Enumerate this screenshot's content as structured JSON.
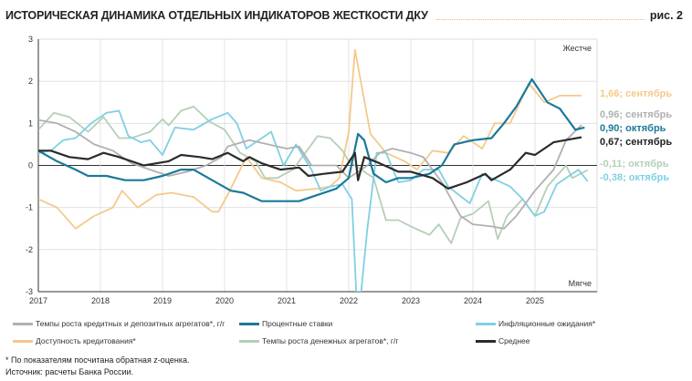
{
  "title": "ИСТОРИЧЕСКАЯ ДИНАМИКА ОТДЕЛЬНЫХ ИНДИКАТОРОВ ЖЕСТКОСТИ ДКУ",
  "figure_label": "рис. 2",
  "footnote": "*    По показателям посчитана обратная z-оценка.",
  "source": "Источник: расчеты Банка России.",
  "chart_data": {
    "type": "line",
    "xlim": [
      2017,
      2026
    ],
    "ylim": [
      -3,
      3
    ],
    "x_ticks": [
      "2017",
      "2018",
      "2019",
      "2020",
      "2021",
      "2022",
      "2023",
      "2024",
      "2025"
    ],
    "y_ticks": [
      "3",
      "2",
      "1",
      "0",
      "-1",
      "-2",
      "-3"
    ],
    "grid": true,
    "annotations": {
      "top": "Жестче",
      "bottom": "Мягче"
    },
    "legend_position": "bottom",
    "series": [
      {
        "name": "Темпы роста кредитных и депозитных агрегатов*, г/г",
        "color": "#b0b0b0",
        "end_label": "0,96; сентябрь",
        "points": [
          [
            2017,
            1.08
          ],
          [
            2017.3,
            1.0
          ],
          [
            2017.6,
            0.8
          ],
          [
            2017.9,
            0.5
          ],
          [
            2018.2,
            0.35
          ],
          [
            2018.5,
            0.05
          ],
          [
            2018.8,
            -0.1
          ],
          [
            2019.1,
            -0.25
          ],
          [
            2019.4,
            -0.15
          ],
          [
            2019.7,
            0.0
          ],
          [
            2019.95,
            0.2
          ],
          [
            2020.05,
            0.45
          ],
          [
            2020.4,
            0.6
          ],
          [
            2020.7,
            0.5
          ],
          [
            2021.0,
            0.4
          ],
          [
            2021.2,
            0.45
          ],
          [
            2021.4,
            0.0
          ],
          [
            2021.8,
            0.0
          ],
          [
            2022.0,
            -0.3
          ],
          [
            2022.3,
            0.0
          ],
          [
            2022.5,
            0.3
          ],
          [
            2022.7,
            0.4
          ],
          [
            2023.0,
            0.3
          ],
          [
            2023.2,
            0.2
          ],
          [
            2023.5,
            -0.4
          ],
          [
            2023.8,
            -1.2
          ],
          [
            2024.0,
            -1.4
          ],
          [
            2024.3,
            -1.45
          ],
          [
            2024.5,
            -1.5
          ],
          [
            2024.7,
            -1.2
          ],
          [
            2025.0,
            -0.6
          ],
          [
            2025.3,
            -0.1
          ],
          [
            2025.5,
            0.6
          ],
          [
            2025.75,
            0.96
          ]
        ]
      },
      {
        "name": "Процентные ставки",
        "color": "#1a7a9a",
        "end_label": "0,90; октябрь",
        "points": [
          [
            2017,
            0.35
          ],
          [
            2017.3,
            0.1
          ],
          [
            2017.6,
            -0.1
          ],
          [
            2017.8,
            -0.25
          ],
          [
            2018.1,
            -0.25
          ],
          [
            2018.4,
            -0.35
          ],
          [
            2018.7,
            -0.35
          ],
          [
            2019.0,
            -0.25
          ],
          [
            2019.3,
            -0.1
          ],
          [
            2019.5,
            -0.1
          ],
          [
            2019.8,
            -0.35
          ],
          [
            2020.1,
            -0.6
          ],
          [
            2020.3,
            -0.65
          ],
          [
            2020.6,
            -0.85
          ],
          [
            2021.0,
            -0.85
          ],
          [
            2021.2,
            -0.85
          ],
          [
            2021.5,
            -0.7
          ],
          [
            2021.8,
            -0.55
          ],
          [
            2022.0,
            -0.3
          ],
          [
            2022.15,
            0.75
          ],
          [
            2022.25,
            0.6
          ],
          [
            2022.4,
            -0.2
          ],
          [
            2022.6,
            -0.4
          ],
          [
            2022.8,
            -0.3
          ],
          [
            2023.0,
            -0.3
          ],
          [
            2023.3,
            -0.2
          ],
          [
            2023.5,
            0.0
          ],
          [
            2023.7,
            0.5
          ],
          [
            2024.0,
            0.6
          ],
          [
            2024.3,
            0.65
          ],
          [
            2024.5,
            1.0
          ],
          [
            2024.7,
            1.4
          ],
          [
            2024.95,
            2.05
          ],
          [
            2025.2,
            1.5
          ],
          [
            2025.4,
            1.35
          ],
          [
            2025.65,
            0.85
          ],
          [
            2025.8,
            0.9
          ]
        ]
      },
      {
        "name": "Инфляционные ожидания*",
        "color": "#7fd0e4",
        "end_label": "-0,38; октябрь",
        "points": [
          [
            2017,
            0.3
          ],
          [
            2017.2,
            0.35
          ],
          [
            2017.4,
            0.6
          ],
          [
            2017.6,
            0.65
          ],
          [
            2017.85,
            1.0
          ],
          [
            2018.1,
            1.25
          ],
          [
            2018.3,
            1.3
          ],
          [
            2018.45,
            0.7
          ],
          [
            2018.65,
            0.55
          ],
          [
            2018.8,
            0.6
          ],
          [
            2019.0,
            0.25
          ],
          [
            2019.2,
            0.9
          ],
          [
            2019.5,
            0.85
          ],
          [
            2019.8,
            1.1
          ],
          [
            2020.05,
            1.25
          ],
          [
            2020.2,
            1.0
          ],
          [
            2020.35,
            0.4
          ],
          [
            2020.6,
            0.65
          ],
          [
            2020.75,
            0.8
          ],
          [
            2020.95,
            0.0
          ],
          [
            2021.15,
            0.5
          ],
          [
            2021.4,
            -0.1
          ],
          [
            2021.55,
            -0.6
          ],
          [
            2021.7,
            -0.5
          ],
          [
            2021.9,
            -0.45
          ],
          [
            2022.05,
            -0.8
          ],
          [
            2022.12,
            -3.0
          ],
          [
            2022.2,
            -3.0
          ],
          [
            2022.3,
            -1.5
          ],
          [
            2022.45,
            0.3
          ],
          [
            2022.6,
            0.3
          ],
          [
            2022.8,
            -0.4
          ],
          [
            2023.0,
            -0.35
          ],
          [
            2023.2,
            -0.1
          ],
          [
            2023.45,
            -0.1
          ],
          [
            2023.6,
            -0.5
          ],
          [
            2023.95,
            -0.9
          ],
          [
            2024.15,
            -0.2
          ],
          [
            2024.3,
            -0.3
          ],
          [
            2024.6,
            -0.5
          ],
          [
            2024.8,
            -0.8
          ],
          [
            2025.0,
            -1.2
          ],
          [
            2025.15,
            -1.1
          ],
          [
            2025.35,
            -0.45
          ],
          [
            2025.7,
            -0.1
          ],
          [
            2025.85,
            -0.38
          ]
        ]
      },
      {
        "name": "Доступность кредитования*",
        "color": "#f5c98a",
        "end_label": "1,66; сентябрь",
        "points": [
          [
            2017,
            -0.8
          ],
          [
            2017.3,
            -1.0
          ],
          [
            2017.6,
            -1.5
          ],
          [
            2017.9,
            -1.2
          ],
          [
            2018.2,
            -1.0
          ],
          [
            2018.35,
            -0.6
          ],
          [
            2018.6,
            -1.0
          ],
          [
            2018.9,
            -0.7
          ],
          [
            2019.15,
            -0.65
          ],
          [
            2019.5,
            -0.75
          ],
          [
            2019.8,
            -1.1
          ],
          [
            2019.9,
            -1.1
          ],
          [
            2020.05,
            -0.7
          ],
          [
            2020.35,
            0.2
          ],
          [
            2020.6,
            -0.3
          ],
          [
            2020.9,
            -0.4
          ],
          [
            2021.15,
            -0.6
          ],
          [
            2021.5,
            -0.55
          ],
          [
            2021.7,
            -0.5
          ],
          [
            2021.85,
            -0.3
          ],
          [
            2022.0,
            0.8
          ],
          [
            2022.1,
            2.75
          ],
          [
            2022.35,
            0.75
          ],
          [
            2022.6,
            0.3
          ],
          [
            2022.9,
            0.1
          ],
          [
            2023.1,
            -0.1
          ],
          [
            2023.35,
            0.35
          ],
          [
            2023.6,
            0.3
          ],
          [
            2023.85,
            0.7
          ],
          [
            2024.15,
            0.4
          ],
          [
            2024.35,
            1.0
          ],
          [
            2024.6,
            1.0
          ],
          [
            2024.9,
            1.95
          ],
          [
            2025.15,
            1.5
          ],
          [
            2025.4,
            1.66
          ],
          [
            2025.75,
            1.66
          ]
        ]
      },
      {
        "name": "Темпы роста денежных агрегатов*, г/г",
        "color": "#b5cfb7",
        "end_label": "-0,11; октябрь",
        "points": [
          [
            2017,
            0.85
          ],
          [
            2017.25,
            1.25
          ],
          [
            2017.5,
            1.15
          ],
          [
            2017.8,
            0.8
          ],
          [
            2018.05,
            1.15
          ],
          [
            2018.3,
            0.65
          ],
          [
            2018.5,
            0.65
          ],
          [
            2018.8,
            0.8
          ],
          [
            2019.0,
            1.1
          ],
          [
            2019.1,
            0.95
          ],
          [
            2019.3,
            1.3
          ],
          [
            2019.5,
            1.4
          ],
          [
            2019.75,
            1.05
          ],
          [
            2020.0,
            0.85
          ],
          [
            2020.25,
            0.3
          ],
          [
            2020.5,
            0.1
          ],
          [
            2020.65,
            -0.3
          ],
          [
            2020.85,
            -0.3
          ],
          [
            2021.1,
            -0.1
          ],
          [
            2021.3,
            0.3
          ],
          [
            2021.5,
            0.7
          ],
          [
            2021.7,
            0.65
          ],
          [
            2021.9,
            0.35
          ],
          [
            2022.0,
            0.1
          ],
          [
            2022.4,
            -0.3
          ],
          [
            2022.6,
            -1.3
          ],
          [
            2022.8,
            -1.3
          ],
          [
            2023.0,
            -1.45
          ],
          [
            2023.3,
            -1.65
          ],
          [
            2023.45,
            -1.4
          ],
          [
            2023.65,
            -1.85
          ],
          [
            2023.8,
            -1.25
          ],
          [
            2024.0,
            -1.15
          ],
          [
            2024.25,
            -0.85
          ],
          [
            2024.4,
            -1.75
          ],
          [
            2024.55,
            -1.2
          ],
          [
            2024.8,
            -0.8
          ],
          [
            2025.0,
            -1.2
          ],
          [
            2025.2,
            -0.5
          ],
          [
            2025.5,
            0.0
          ],
          [
            2025.6,
            -0.3
          ],
          [
            2025.85,
            -0.11
          ]
        ]
      },
      {
        "name": "Среднее",
        "color": "#2b2b2b",
        "end_label": "0,67; сентябрь",
        "points": [
          [
            2017,
            0.35
          ],
          [
            2017.2,
            0.35
          ],
          [
            2017.5,
            0.2
          ],
          [
            2017.8,
            0.15
          ],
          [
            2018.05,
            0.3
          ],
          [
            2018.3,
            0.2
          ],
          [
            2018.5,
            0.1
          ],
          [
            2018.7,
            0.0
          ],
          [
            2018.9,
            0.05
          ],
          [
            2019.1,
            0.1
          ],
          [
            2019.3,
            0.25
          ],
          [
            2019.6,
            0.2
          ],
          [
            2019.8,
            0.15
          ],
          [
            2020.05,
            0.3
          ],
          [
            2020.3,
            0.1
          ],
          [
            2020.4,
            0.2
          ],
          [
            2020.6,
            0.05
          ],
          [
            2020.9,
            -0.1
          ],
          [
            2021.2,
            -0.05
          ],
          [
            2021.35,
            -0.25
          ],
          [
            2021.6,
            -0.2
          ],
          [
            2021.9,
            -0.15
          ],
          [
            2022.1,
            0.3
          ],
          [
            2022.15,
            -0.35
          ],
          [
            2022.25,
            0.2
          ],
          [
            2022.5,
            0.05
          ],
          [
            2022.8,
            -0.15
          ],
          [
            2023.0,
            -0.15
          ],
          [
            2023.35,
            -0.3
          ],
          [
            2023.6,
            -0.55
          ],
          [
            2023.9,
            -0.4
          ],
          [
            2024.2,
            -0.2
          ],
          [
            2024.3,
            -0.35
          ],
          [
            2024.6,
            -0.1
          ],
          [
            2024.85,
            0.3
          ],
          [
            2025.0,
            0.25
          ],
          [
            2025.3,
            0.55
          ],
          [
            2025.75,
            0.67
          ]
        ]
      }
    ]
  }
}
